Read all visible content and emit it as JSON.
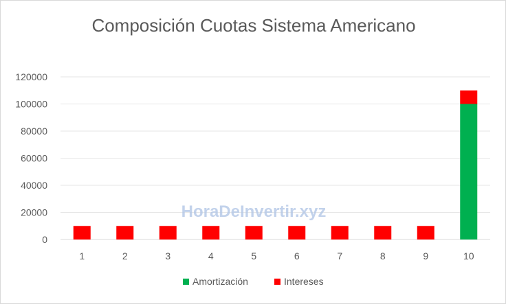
{
  "chart_data": {
    "type": "bar",
    "stacked": true,
    "title": "Composición Cuotas Sistema Americano",
    "xlabel": "",
    "ylabel": "",
    "categories": [
      "1",
      "2",
      "3",
      "4",
      "5",
      "6",
      "7",
      "8",
      "9",
      "10"
    ],
    "series": [
      {
        "name": "Amortización",
        "color": "#00b050",
        "values": [
          0,
          0,
          0,
          0,
          0,
          0,
          0,
          0,
          0,
          100000
        ]
      },
      {
        "name": "Intereses",
        "color": "#ff0000",
        "values": [
          10000,
          10000,
          10000,
          10000,
          10000,
          10000,
          10000,
          10000,
          10000,
          10000
        ]
      }
    ],
    "ylim": [
      0,
      120000
    ],
    "yticks": [
      "0",
      "20000",
      "40000",
      "60000",
      "80000",
      "100000",
      "120000"
    ],
    "grid": true,
    "legend": "bottom",
    "watermark": "HoraDeInvertir.xyz"
  }
}
